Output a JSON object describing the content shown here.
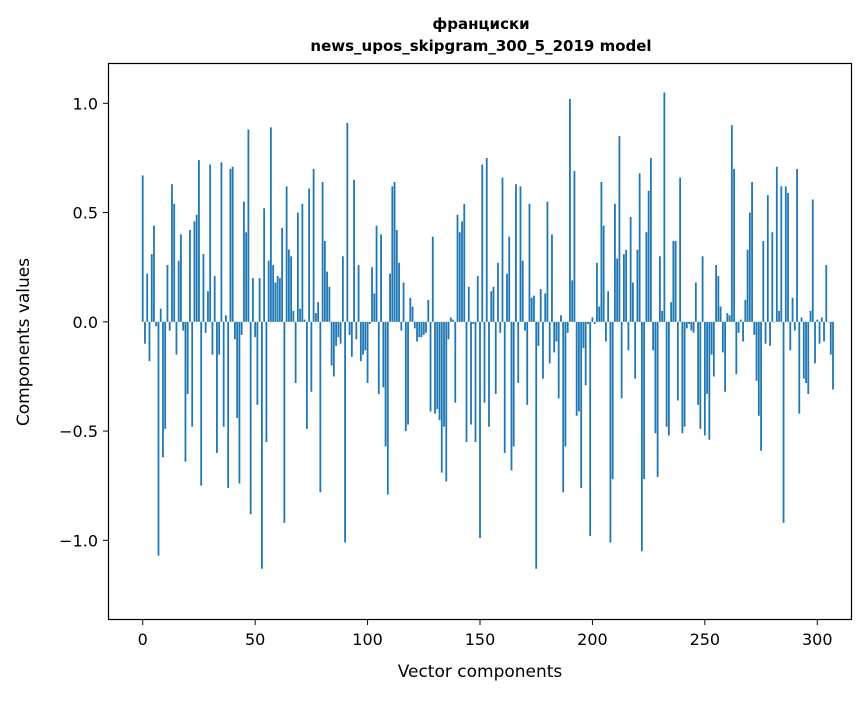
{
  "chart_data": {
    "type": "bar",
    "title": "франциски",
    "subtitle": "news_upos_skipgram_300_5_2019 model",
    "xlabel": "Vector components",
    "ylabel": "Components values",
    "xlim": [
      -15,
      315
    ],
    "ylim": [
      -1.36,
      1.18
    ],
    "xticks": [
      0,
      50,
      100,
      150,
      200,
      250,
      300
    ],
    "xtick_labels": [
      "0",
      "50",
      "100",
      "150",
      "200",
      "250",
      "300"
    ],
    "yticks": [
      -1.0,
      -0.5,
      0.0,
      0.5,
      1.0
    ],
    "ytick_labels": [
      "−1.0",
      "−0.5",
      "0.0",
      "0.5",
      "1.0"
    ],
    "grid": false,
    "legend": "none",
    "bar_color": "#1f77b4",
    "values": [
      0.67,
      -0.1,
      0.22,
      -0.18,
      0.31,
      0.44,
      -0.02,
      -1.07,
      0.06,
      -0.62,
      -0.49,
      0.26,
      -0.04,
      0.63,
      0.54,
      -0.15,
      0.28,
      0.4,
      -0.04,
      -0.64,
      -0.33,
      0.42,
      -0.48,
      0.46,
      0.49,
      0.74,
      -0.75,
      0.31,
      -0.05,
      0.14,
      0.72,
      -0.15,
      0.21,
      -0.6,
      -0.15,
      0.73,
      -0.48,
      0.03,
      -0.76,
      0.7,
      0.71,
      -0.08,
      -0.44,
      -0.74,
      -0.06,
      0.55,
      0.41,
      0.88,
      -0.88,
      0.2,
      -0.07,
      -0.38,
      0.2,
      -1.13,
      0.52,
      -0.55,
      0.28,
      0.89,
      0.26,
      0.18,
      0.21,
      0.2,
      0.43,
      -0.92,
      0.62,
      0.33,
      0.3,
      0.05,
      -0.28,
      0.5,
      0.06,
      0.54,
      0.01,
      -0.49,
      0.61,
      -0.32,
      0.7,
      0.04,
      0.09,
      -0.78,
      0.64,
      0.37,
      0.23,
      0.16,
      -0.2,
      -0.25,
      -0.11,
      -0.07,
      -0.1,
      0.3,
      -1.01,
      0.91,
      -0.06,
      -0.16,
      0.65,
      -0.08,
      0.26,
      -0.18,
      -0.15,
      -0.13,
      -0.28,
      -0.01,
      0.25,
      0.13,
      0.44,
      -0.33,
      0.4,
      -0.3,
      -0.57,
      -0.79,
      0.22,
      0.62,
      0.64,
      0.42,
      0.27,
      -0.04,
      0.18,
      -0.5,
      -0.47,
      0.11,
      0.07,
      -0.03,
      -0.09,
      -0.07,
      -0.07,
      -0.06,
      -0.05,
      0.1,
      -0.41,
      0.39,
      -0.42,
      -0.4,
      -0.45,
      -0.69,
      -0.48,
      -0.73,
      -0.08,
      0.02,
      0.01,
      -0.37,
      0.49,
      0.41,
      0.46,
      0.54,
      -0.55,
      0.16,
      -0.47,
      -0.01,
      -0.55,
      0.21,
      -0.99,
      0.72,
      -0.37,
      0.75,
      -0.48,
      0.14,
      0.16,
      -0.33,
      0.27,
      -0.05,
      0.66,
      -0.6,
      0.22,
      0.39,
      -0.68,
      -0.57,
      0.63,
      -0.28,
      0.62,
      0.28,
      -0.04,
      -0.38,
      0.54,
      0.11,
      0.12,
      -1.13,
      -0.11,
      0.15,
      -0.26,
      0.13,
      0.55,
      -0.19,
      0.4,
      -0.14,
      -0.09,
      -0.35,
      0.03,
      -0.78,
      -0.57,
      -0.05,
      1.02,
      0.19,
      0.69,
      -0.43,
      -0.41,
      -0.76,
      -0.12,
      -0.29,
      -0.01,
      -0.98,
      0.02,
      -0.01,
      0.27,
      0.07,
      0.64,
      0.44,
      -0.09,
      0.14,
      -1.01,
      -0.72,
      0.54,
      0.29,
      0.85,
      -0.35,
      0.31,
      0.33,
      -0.13,
      0.48,
      0.18,
      -0.26,
      0.33,
      0.68,
      -1.05,
      -0.72,
      0.41,
      0.6,
      0.75,
      -0.13,
      -0.51,
      -0.71,
      0.3,
      0.05,
      1.05,
      -0.48,
      -0.52,
      0.09,
      0.37,
      0.37,
      -0.36,
      0.66,
      -0.51,
      -0.48,
      -0.03,
      -0.01,
      -0.04,
      -0.05,
      0.18,
      -0.38,
      -0.49,
      0.3,
      -0.52,
      -0.33,
      -0.54,
      -0.15,
      -0.25,
      0.26,
      0.21,
      0.07,
      -0.14,
      -0.32,
      0.04,
      0.03,
      0.9,
      0.7,
      -0.24,
      -0.05,
      0.01,
      -0.09,
      0.1,
      0.33,
      0.5,
      0.64,
      -0.06,
      -0.27,
      -0.43,
      -0.59,
      0.37,
      -0.1,
      0.58,
      -0.11,
      0.41,
      0.0,
      0.71,
      0.05,
      0.62,
      -0.92,
      0.62,
      0.59,
      -0.13,
      0.11,
      -0.04,
      0.7,
      -0.42,
      0.02,
      -0.26,
      -0.28,
      -0.33,
      0.05,
      0.56,
      -0.19,
      0.01,
      -0.1,
      0.02,
      -0.09,
      0.26,
      0.0,
      -0.15,
      -0.31
    ]
  }
}
